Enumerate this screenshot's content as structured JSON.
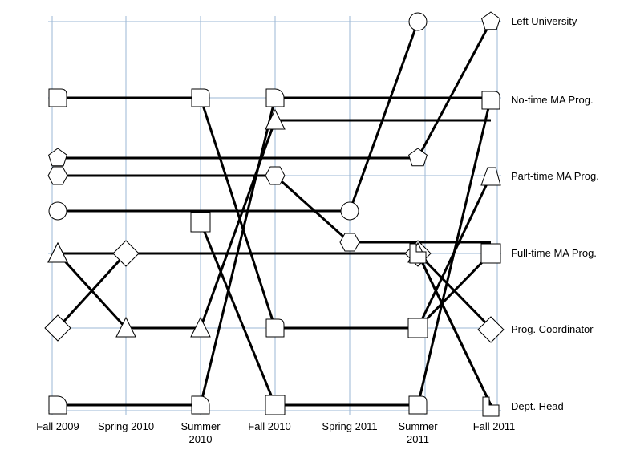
{
  "diagram": {
    "time_points": [
      {
        "key": "f09",
        "label_lines": [
          "Fall 2009"
        ]
      },
      {
        "key": "s10",
        "label_lines": [
          "Spring 2010"
        ]
      },
      {
        "key": "su10",
        "label_lines": [
          "Summer",
          "2010"
        ]
      },
      {
        "key": "f10",
        "label_lines": [
          "Fall 2010"
        ]
      },
      {
        "key": "s11",
        "label_lines": [
          "Spring 2011"
        ]
      },
      {
        "key": "su11",
        "label_lines": [
          "Summer",
          "2011"
        ]
      },
      {
        "key": "f11",
        "label_lines": [
          "Fall 2011"
        ]
      }
    ],
    "statuses": [
      {
        "key": "left",
        "label": "Left University"
      },
      {
        "key": "notime",
        "label": "No-time MA Prog."
      },
      {
        "key": "parttime",
        "label": "Part-time MA Prog."
      },
      {
        "key": "fulltime",
        "label": "Full-time MA Prog."
      },
      {
        "key": "coord",
        "label": "Prog. Coordinator"
      },
      {
        "key": "head",
        "label": "Dept. Head"
      }
    ],
    "legend_shapes": [
      {
        "status": "left",
        "shape": "pentagon"
      },
      {
        "status": "notime",
        "shape": "rounded-square"
      },
      {
        "status": "parttime",
        "shape": "trapezoid"
      },
      {
        "status": "fulltime",
        "shape": "square"
      },
      {
        "status": "coord",
        "shape": "diamond"
      },
      {
        "status": "head",
        "shape": "notched-square"
      }
    ],
    "trajectories": [
      {
        "shape": "rounded-square",
        "path": [
          [
            "f09",
            "notime"
          ],
          [
            "su10",
            "notime"
          ],
          [
            "f10",
            "coord"
          ],
          [
            "su11",
            "coord"
          ],
          [
            "f11",
            "parttime"
          ]
        ]
      },
      {
        "shape": "half-round",
        "path": [
          [
            "f09",
            "head"
          ],
          [
            "su10",
            "head"
          ],
          [
            "f10",
            "notime"
          ],
          [
            "f11",
            "notime"
          ]
        ]
      },
      {
        "shape": "rounded-square",
        "path": [
          [
            "f10",
            "head"
          ],
          [
            "su11",
            "head"
          ],
          [
            "f11",
            "notime"
          ]
        ]
      },
      {
        "shape": "pentagon",
        "path": [
          [
            "f09",
            "parttime_hi"
          ],
          [
            "su11",
            "parttime_hi"
          ],
          [
            "f11",
            "left"
          ]
        ]
      },
      {
        "shape": "hexagon",
        "path": [
          [
            "f09",
            "parttime"
          ],
          [
            "f10",
            "parttime"
          ],
          [
            "s11",
            "fulltime_hi"
          ],
          [
            "f11",
            "fulltime_hi"
          ]
        ]
      },
      {
        "shape": "circle",
        "path": [
          [
            "f09",
            "fulltime_upper"
          ],
          [
            "s11",
            "fulltime_upper"
          ],
          [
            "su11",
            "left"
          ]
        ]
      },
      {
        "shape": "square",
        "path": [
          [
            "su10",
            "fulltime_mid"
          ],
          [
            "f10",
            "head"
          ]
        ]
      },
      {
        "shape": "triangle",
        "path": [
          [
            "f09",
            "fulltime"
          ],
          [
            "s10",
            "coord"
          ],
          [
            "su10",
            "coord"
          ],
          [
            "f10",
            "notime_low"
          ],
          [
            "f11",
            "notime_low"
          ]
        ]
      },
      {
        "shape": "diamond",
        "path": [
          [
            "f09",
            "coord"
          ],
          [
            "s10",
            "fulltime"
          ],
          [
            "su11",
            "fulltime"
          ],
          [
            "f11",
            "coord"
          ]
        ]
      },
      {
        "shape": "triangle",
        "path": [
          [
            "f09",
            "fulltime"
          ],
          [
            "su11",
            "fulltime"
          ],
          [
            "f11",
            "head"
          ]
        ]
      },
      {
        "shape": "notched-square",
        "path": [
          [
            "su11",
            "fulltime"
          ],
          [
            "f11",
            "head"
          ]
        ]
      },
      {
        "shape": "square",
        "path": [
          [
            "su11",
            "coord"
          ],
          [
            "f11",
            "fulltime"
          ]
        ]
      }
    ]
  }
}
